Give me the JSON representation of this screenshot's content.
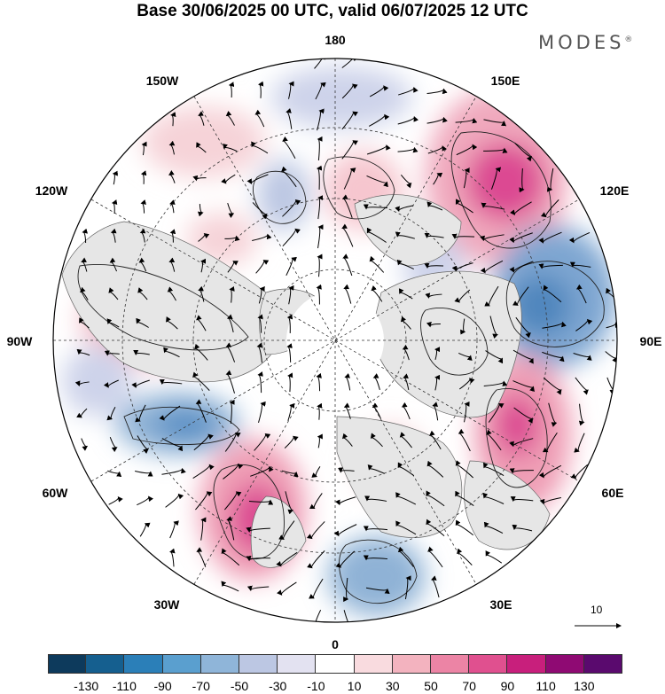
{
  "title": "Base 30/06/2025 00 UTC, valid 06/07/2025 12 UTC",
  "brand": "MODES",
  "brand_mark": "®",
  "longitude_labels": {
    "top": "180",
    "bottom": "0",
    "left": "90W",
    "right": "90E",
    "upper_left_1": "150W",
    "upper_left_2": "120W",
    "upper_right_1": "150E",
    "upper_right_2": "120E",
    "lower_left_1": "60W",
    "lower_left_2": "30W",
    "lower_right_1": "60E",
    "lower_right_2": "30E"
  },
  "reference_vector": {
    "value": "10",
    "icon": "arrow-right-icon"
  },
  "colorbar": {
    "colors": [
      "#0d3a5c",
      "#155f8f",
      "#2b7fb8",
      "#5a9fcf",
      "#8fb5d9",
      "#bcc7e3",
      "#e3e2f1",
      "#ffffff",
      "#f9dbdf",
      "#f3b3bf",
      "#ec84a5",
      "#e0508f",
      "#c81f7c",
      "#8f0a73",
      "#5a0a6e"
    ],
    "ticks": [
      "-130",
      "-110",
      "-90",
      "-70",
      "-50",
      "-30",
      "-10",
      "10",
      "30",
      "50",
      "70",
      "90",
      "110",
      "130"
    ]
  },
  "map": {
    "projection": "north-polar-stereographic",
    "field": "height anomaly with wind vectors",
    "anomaly_colors": {
      "strong_negative": "#4f86bd",
      "moderate_negative": "#8fb2d6",
      "weak_negative": "#cdd3ea",
      "weak_positive": "#f6d3d8",
      "moderate_positive": "#ee9fb4",
      "strong_positive": "#dc4a92"
    }
  }
}
